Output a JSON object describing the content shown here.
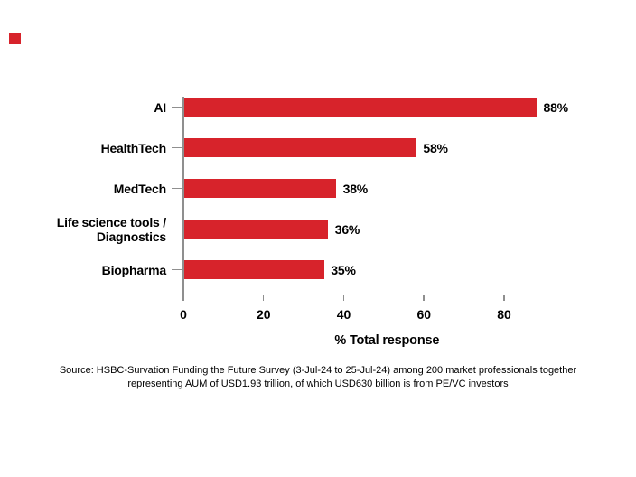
{
  "brand": {
    "mark_color": "#D7232B"
  },
  "chart_data": {
    "type": "bar",
    "orientation": "horizontal",
    "title": "",
    "categories": [
      "AI",
      "HealthTech",
      "MedTech",
      "Life science tools /\nDiagnostics",
      "Biopharma"
    ],
    "values": [
      88,
      58,
      38,
      36,
      35
    ],
    "value_labels": [
      "88%",
      "58%",
      "38%",
      "36%",
      "35%"
    ],
    "xlabel": "% Total response",
    "xticks": [
      0,
      20,
      40,
      60,
      80
    ],
    "xtick_labels": [
      "0",
      "20",
      "40",
      "60",
      "80"
    ],
    "xlim": [
      0,
      102
    ],
    "grid": false,
    "legend": false,
    "bar_color": "#D7232B",
    "axis_color": "#8F8F8F",
    "text_color": "#000000"
  },
  "source": {
    "line1": "Source: HSBC-Survation Funding the Future Survey (3-Jul-24 to 25-Jul-24) among 200 market professionals together",
    "line2": "representing AUM of USD1.93 trillion, of which USD630 billion is from PE/VC investors"
  }
}
